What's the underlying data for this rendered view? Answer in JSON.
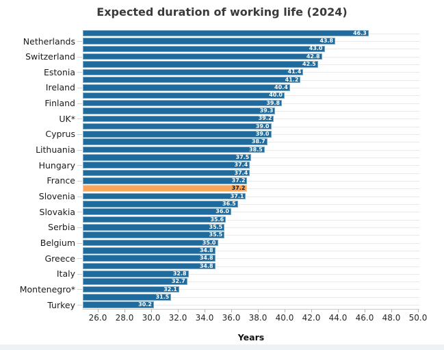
{
  "chart_data": {
    "type": "bar",
    "orientation": "horizontal",
    "title": "Expected duration of working life (2024)",
    "xlabel": "Years",
    "xlim": [
      24.9,
      50.1
    ],
    "xtick_values": [
      26,
      28,
      30,
      32,
      34,
      36,
      38,
      40,
      42,
      44,
      46,
      48,
      50
    ],
    "xtick_labels": [
      "26.0",
      "28.0",
      "30.0",
      "32.0",
      "34.0",
      "36.0",
      "38.0",
      "40.0",
      "42.0",
      "44.0",
      "46.0",
      "48.0",
      "50.0"
    ],
    "grid": "horizontal-row-lines",
    "legend": "none",
    "note": "y-axis labels shown only on every second bar; one highlighted bar has no visible label",
    "bars": [
      {
        "label": "",
        "value": 46.3,
        "display": "46.3",
        "highlight": false
      },
      {
        "label": "Netherlands",
        "value": 43.8,
        "display": "43.8",
        "highlight": false
      },
      {
        "label": "",
        "value": 43.0,
        "display": "43.0",
        "highlight": false
      },
      {
        "label": "Switzerland",
        "value": 42.8,
        "display": "42.8",
        "highlight": false
      },
      {
        "label": "",
        "value": 42.5,
        "display": "42.5",
        "highlight": false
      },
      {
        "label": "Estonia",
        "value": 41.4,
        "display": "41.4",
        "highlight": false
      },
      {
        "label": "",
        "value": 41.2,
        "display": "41.2",
        "highlight": false
      },
      {
        "label": "Ireland",
        "value": 40.4,
        "display": "40.4",
        "highlight": false
      },
      {
        "label": "",
        "value": 40.0,
        "display": "40.0",
        "highlight": false
      },
      {
        "label": "Finland",
        "value": 39.8,
        "display": "39.8",
        "highlight": false
      },
      {
        "label": "",
        "value": 39.3,
        "display": "39.3",
        "highlight": false
      },
      {
        "label": "UK*",
        "value": 39.2,
        "display": "39.2",
        "highlight": false
      },
      {
        "label": "",
        "value": 39.0,
        "display": "39.0",
        "highlight": false
      },
      {
        "label": "Cyprus",
        "value": 39.0,
        "display": "39.0",
        "highlight": false
      },
      {
        "label": "",
        "value": 38.7,
        "display": "38.7",
        "highlight": false
      },
      {
        "label": "Lithuania",
        "value": 38.5,
        "display": "38.5",
        "highlight": false
      },
      {
        "label": "",
        "value": 37.5,
        "display": "37.5",
        "highlight": false
      },
      {
        "label": "Hungary",
        "value": 37.4,
        "display": "37.4",
        "highlight": false
      },
      {
        "label": "",
        "value": 37.4,
        "display": "37.4",
        "highlight": false
      },
      {
        "label": "France",
        "value": 37.2,
        "display": "37.2",
        "highlight": false
      },
      {
        "label": "",
        "value": 37.2,
        "display": "37.2",
        "highlight": true
      },
      {
        "label": "Slovenia",
        "value": 37.1,
        "display": "37.1",
        "highlight": false
      },
      {
        "label": "",
        "value": 36.5,
        "display": "36.5",
        "highlight": false
      },
      {
        "label": "Slovakia",
        "value": 36.0,
        "display": "36.0",
        "highlight": false
      },
      {
        "label": "",
        "value": 35.6,
        "display": "35.6",
        "highlight": false
      },
      {
        "label": "Serbia",
        "value": 35.5,
        "display": "35.5",
        "highlight": false
      },
      {
        "label": "",
        "value": 35.5,
        "display": "35.5",
        "highlight": false
      },
      {
        "label": "Belgium",
        "value": 35.0,
        "display": "35.0",
        "highlight": false
      },
      {
        "label": "",
        "value": 34.8,
        "display": "34.8",
        "highlight": false
      },
      {
        "label": "Greece",
        "value": 34.8,
        "display": "34.8",
        "highlight": false
      },
      {
        "label": "",
        "value": 34.8,
        "display": "34.8",
        "highlight": false
      },
      {
        "label": "Italy",
        "value": 32.8,
        "display": "32.8",
        "highlight": false
      },
      {
        "label": "",
        "value": 32.7,
        "display": "32.7",
        "highlight": false
      },
      {
        "label": "Montenegro*",
        "value": 32.1,
        "display": "32.1",
        "highlight": false
      },
      {
        "label": "",
        "value": 31.5,
        "display": "31.5",
        "highlight": false
      },
      {
        "label": "Turkey",
        "value": 30.2,
        "display": "30.2",
        "highlight": false
      }
    ],
    "colors": {
      "bar": "#1f6b9d",
      "highlight_bar": "#f9a55c",
      "value_label": "#ffffff",
      "highlight_value_label": "#151515",
      "row_line": "#e9e9e9",
      "axis_line": "#c9c9c9",
      "title_text": "#3a3a3a"
    }
  }
}
